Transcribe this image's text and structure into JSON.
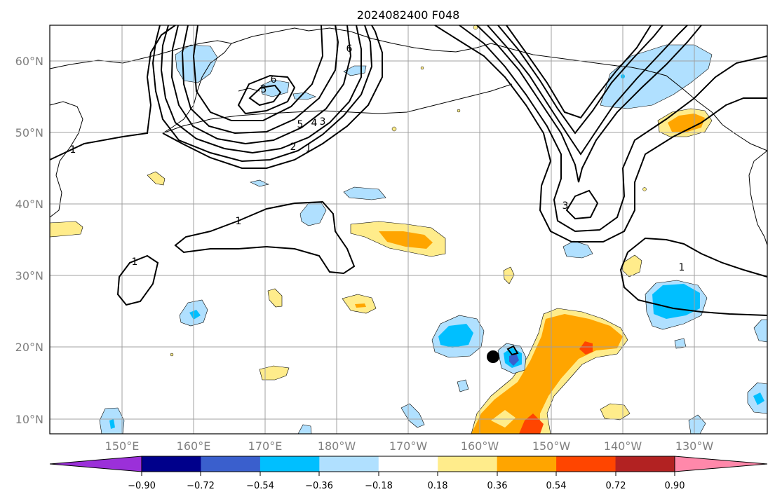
{
  "title": "2024082400 F048",
  "map": {
    "lon_labels": [
      "150°E",
      "160°E",
      "170°E",
      "180°W",
      "170°W",
      "160°W",
      "150°W",
      "140°W",
      "130°W"
    ],
    "lat_labels": [
      "60°N",
      "50°N",
      "40°N",
      "30°N",
      "20°N",
      "10°N"
    ],
    "contour_labels": [
      "1",
      "1",
      "1",
      "1",
      "1",
      "2",
      "3",
      "4",
      "5",
      "6",
      "6",
      "5",
      "3"
    ]
  },
  "colorbar": {
    "tick_labels": [
      "−0.90",
      "−0.72",
      "−0.54",
      "−0.36",
      "−0.18",
      "0.18",
      "0.36",
      "0.54",
      "0.72",
      "0.90"
    ],
    "colors": [
      "#9b30d9",
      "#00008b",
      "#3a5fcd",
      "#00bfff",
      "#b0e0ff",
      "#ffffff",
      "#ffec8b",
      "#ffa500",
      "#ff4500",
      "#b22222",
      "#ff88aa"
    ]
  },
  "colors": {
    "neg_light": "#b0e0ff",
    "neg_mid": "#00bfff",
    "neg_dark": "#3a5fcd",
    "neg_darker": "#00008b",
    "pos_light": "#ffec8b",
    "pos_mid": "#ffa500",
    "pos_strong": "#ff4500",
    "grid": "#a0a0a0"
  },
  "marker": "black-dot"
}
